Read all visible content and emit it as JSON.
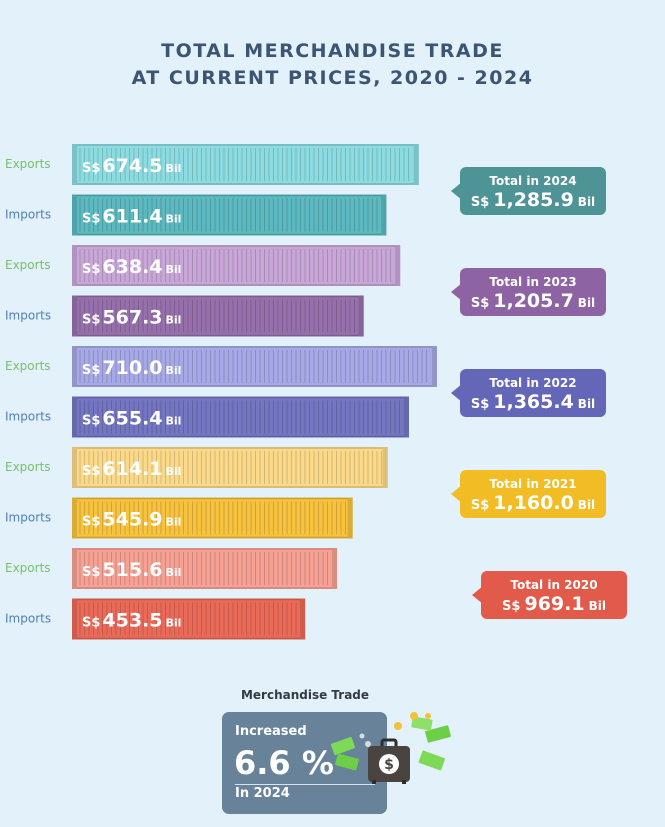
{
  "title": {
    "line1": "TOTAL MERCHANDISE TRADE",
    "line2": "AT CURRENT PRICES, 2020 - 2024"
  },
  "chart_data": {
    "type": "bar",
    "orientation": "horizontal",
    "title": "TOTAL MERCHANDISE TRADE AT CURRENT PRICES, 2020 - 2024",
    "currency_prefix": "S$",
    "unit": "Bil",
    "xlim": [
      0,
      720
    ],
    "categories": [
      "Exports",
      "Imports"
    ],
    "groups": [
      {
        "year": "2024",
        "exports": 674.5,
        "imports": 611.4,
        "exports_label": "674.5",
        "imports_label": "611.4",
        "total_title": "Total in 2024",
        "total_label": "1,285.9",
        "exports_color": "#8cdbe0",
        "imports_color": "#5bb9bf",
        "total_color": "#4e9497"
      },
      {
        "year": "2023",
        "exports": 638.4,
        "imports": 567.3,
        "exports_label": "638.4",
        "imports_label": "567.3",
        "total_title": "Total in 2023",
        "total_label": "1,205.7",
        "exports_color": "#c8a7d8",
        "imports_color": "#9670ab",
        "total_color": "#8e63a3"
      },
      {
        "year": "2022",
        "exports": 710.0,
        "imports": 655.4,
        "exports_label": "710.0",
        "imports_label": "655.4",
        "total_title": "Total in 2022",
        "total_label": "1,365.4",
        "exports_color": "#a7a8e6",
        "imports_color": "#7476c2",
        "total_color": "#6466b8"
      },
      {
        "year": "2021",
        "exports": 614.1,
        "imports": 545.9,
        "exports_label": "614.1",
        "imports_label": "545.9",
        "total_title": "Total in 2021",
        "total_label": "1,160.0",
        "exports_color": "#fbd98a",
        "imports_color": "#f7c23e",
        "total_color": "#f1bc24"
      },
      {
        "year": "2020",
        "exports": 515.6,
        "imports": 453.5,
        "exports_label": "515.6",
        "imports_label": "453.5",
        "total_title": "Total in 2020",
        "total_label": "969.1",
        "exports_color": "#f6a193",
        "imports_color": "#ea6a59",
        "total_color": "#e25a4a"
      }
    ],
    "label_colors": {
      "exports": "#78c06a",
      "imports": "#4f7fba"
    }
  },
  "footer": {
    "title": "Merchandise Trade",
    "increased_label": "Increased",
    "percent": "6.6 %",
    "period": "In 2024",
    "card_color": "#688299"
  },
  "icons": {
    "money": "money-briefcase-icon"
  }
}
